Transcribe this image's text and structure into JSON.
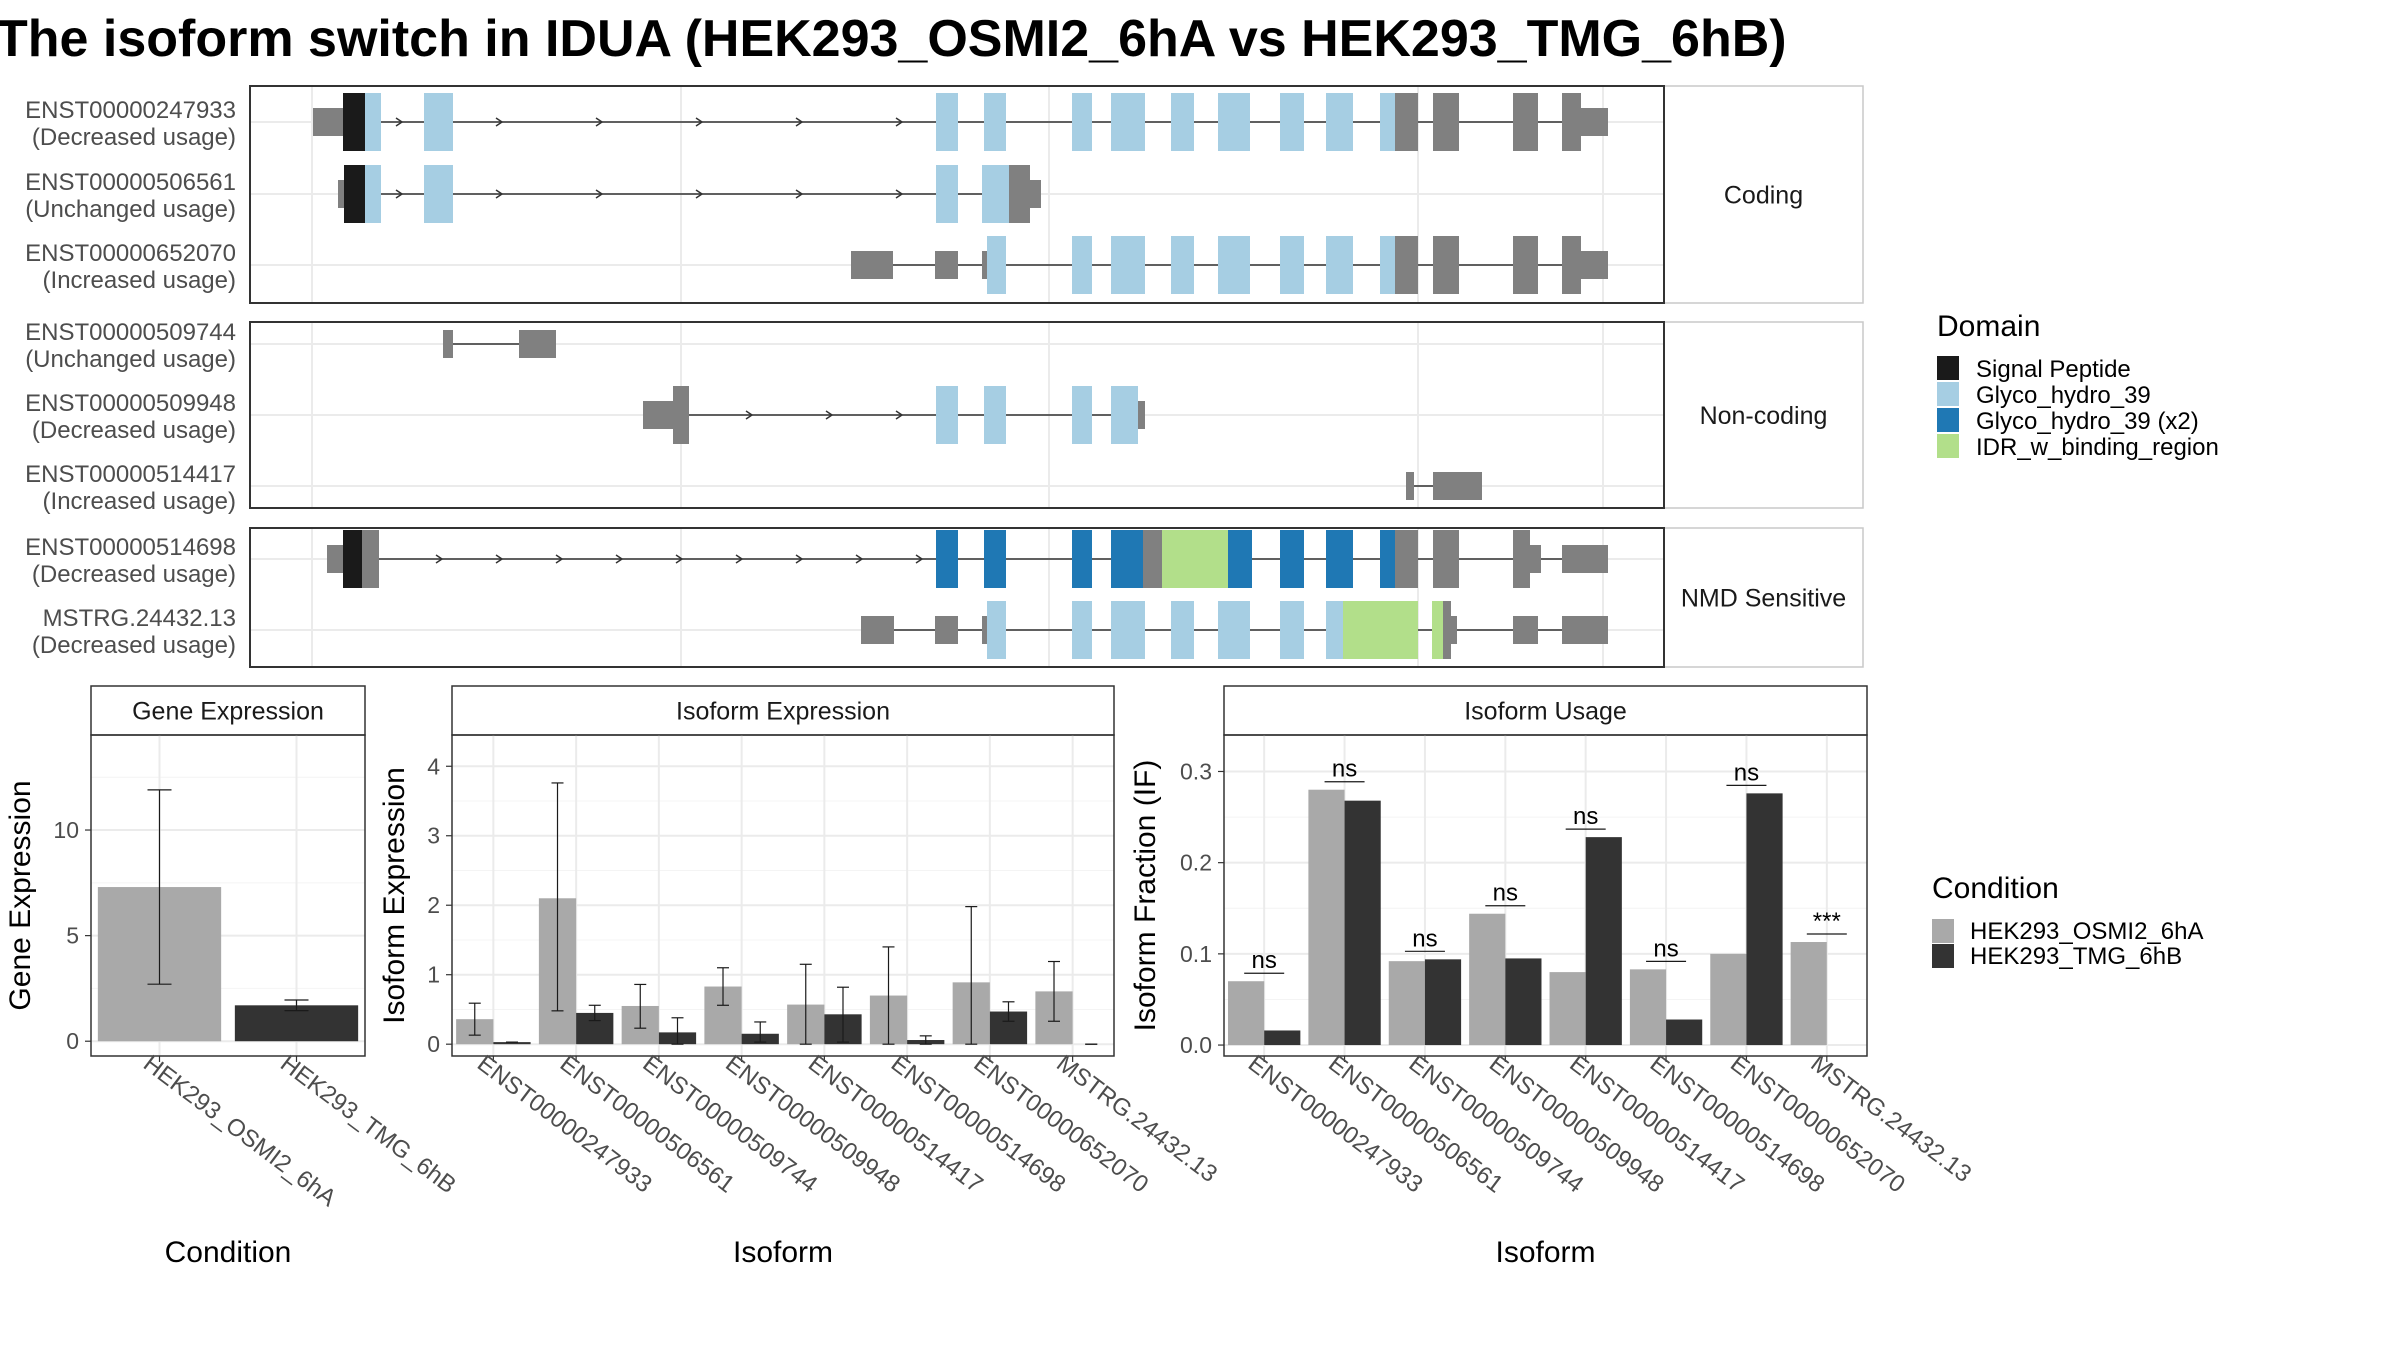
{
  "title": "The isoform switch in IDUA (HEK293_OSMI2_6hA vs HEK293_TMG_6hB)",
  "structure": {
    "panels": [
      {
        "label": "Coding",
        "rows": [
          {
            "id": "ENST00000247933",
            "usage": "(Decreased usage)"
          },
          {
            "id": "ENST00000506561",
            "usage": "(Unchanged usage)"
          },
          {
            "id": "ENST00000652070",
            "usage": "(Increased usage)"
          }
        ]
      },
      {
        "label": "Non-coding",
        "rows": [
          {
            "id": "ENST00000509744",
            "usage": "(Unchanged usage)"
          },
          {
            "id": "ENST00000509948",
            "usage": "(Decreased usage)"
          },
          {
            "id": "ENST00000514417",
            "usage": "(Increased usage)"
          }
        ]
      },
      {
        "label": "NMD Sensitive",
        "rows": [
          {
            "id": "ENST00000514698",
            "usage": "(Decreased usage)"
          },
          {
            "id": "MSTRG.24432.13",
            "usage": "(Decreased usage)"
          }
        ]
      }
    ]
  },
  "domain_legend": {
    "title": "Domain",
    "items": [
      {
        "label": "Signal Peptide",
        "color": "#1a1a1a"
      },
      {
        "label": "Glyco_hydro_39",
        "color": "#a6cee3"
      },
      {
        "label": "Glyco_hydro_39 (x2)",
        "color": "#1f78b4"
      },
      {
        "label": "IDR_w_binding_region",
        "color": "#b2df8a"
      }
    ]
  },
  "condition_legend": {
    "title": "Condition",
    "items": [
      {
        "label": "HEK293_OSMI2_6hA",
        "color": "#a9a9a9"
      },
      {
        "label": "HEK293_TMG_6hB",
        "color": "#333333"
      }
    ]
  },
  "chart_data": [
    {
      "type": "bar",
      "title": "Gene Expression",
      "xlabel": "Condition",
      "ylabel": "Gene Expression",
      "categories": [
        "HEK293_OSMI2_6hA",
        "HEK293_TMG_6hB"
      ],
      "values": [
        7.3,
        1.7
      ],
      "error_low": [
        2.7,
        1.45
      ],
      "error_high": [
        11.9,
        1.95
      ],
      "ylim": [
        -0.7,
        14.5
      ],
      "yticks": [
        0,
        5,
        10
      ]
    },
    {
      "type": "bar",
      "title": "Isoform Expression",
      "xlabel": "Isoform",
      "ylabel": "Isoform Expression",
      "categories": [
        "ENST00000247933",
        "ENST00000506561",
        "ENST00000509744",
        "ENST00000509948",
        "ENST00000514417",
        "ENST00000514698",
        "ENST00000652070",
        "MSTRG.24432.13"
      ],
      "series": [
        {
          "name": "HEK293_OSMI2_6hA",
          "values": [
            0.36,
            2.1,
            0.55,
            0.83,
            0.57,
            0.7,
            0.89,
            0.76
          ],
          "error_low": [
            0.13,
            0.48,
            0.23,
            0.56,
            0.0,
            0.0,
            0.0,
            0.33
          ],
          "error_high": [
            0.59,
            3.76,
            0.86,
            1.1,
            1.15,
            1.4,
            1.98,
            1.19
          ]
        },
        {
          "name": "HEK293_TMG_6hB",
          "values": [
            0.03,
            0.45,
            0.17,
            0.15,
            0.43,
            0.06,
            0.47,
            0.0
          ],
          "error_low": [
            0.03,
            0.34,
            0.0,
            0.03,
            0.03,
            0.0,
            0.33,
            0.0
          ],
          "error_high": [
            0.03,
            0.56,
            0.38,
            0.32,
            0.82,
            0.12,
            0.61,
            0.0
          ]
        }
      ],
      "ylim": [
        -0.17,
        4.45
      ],
      "yticks": [
        0,
        1,
        2,
        3,
        4
      ]
    },
    {
      "type": "bar",
      "title": "Isoform Usage",
      "xlabel": "Isoform",
      "ylabel": "Isoform Fraction (IF)",
      "categories": [
        "ENST00000247933",
        "ENST00000506561",
        "ENST00000509744",
        "ENST00000509948",
        "ENST00000514417",
        "ENST00000514698",
        "ENST00000652070",
        "MSTRG.24432.13"
      ],
      "series": [
        {
          "name": "HEK293_OSMI2_6hA",
          "values": [
            0.07,
            0.28,
            0.092,
            0.144,
            0.08,
            0.083,
            0.1,
            0.113
          ]
        },
        {
          "name": "HEK293_TMG_6hB",
          "values": [
            0.016,
            0.268,
            0.094,
            0.095,
            0.228,
            0.028,
            0.276,
            0.0
          ]
        }
      ],
      "significance": [
        "ns",
        "ns",
        "ns",
        "ns",
        "ns",
        "ns",
        "ns",
        "***"
      ],
      "ylim": [
        -0.012,
        0.34
      ],
      "yticks": [
        0.0,
        0.1,
        0.2,
        0.3
      ]
    }
  ]
}
